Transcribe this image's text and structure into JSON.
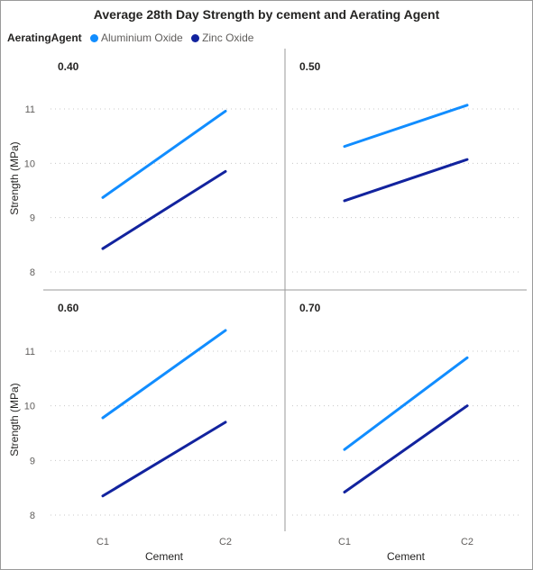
{
  "chart_data": {
    "type": "line",
    "title": "Average 28th Day Strength by cement and Aerating Agent",
    "legend": {
      "title": "AeratingAgent",
      "placement": "top-left",
      "entries": [
        {
          "name": "Aluminium Oxide",
          "color": "#118dff"
        },
        {
          "name": "Zinc Oxide",
          "color": "#12239e"
        }
      ]
    },
    "xlabel": "Cement",
    "ylabel": "Strength (MPa)",
    "categories": [
      "C1",
      "C2"
    ],
    "y_ticks": [
      "8",
      "9",
      "10",
      "11"
    ],
    "grid": true,
    "panels": [
      {
        "label": "0.40",
        "ylim": [
          7.7,
          11.4
        ],
        "series": [
          {
            "name": "Aluminium Oxide",
            "values": [
              9.37,
              10.96
            ]
          },
          {
            "name": "Zinc Oxide",
            "values": [
              8.43,
              9.85
            ]
          }
        ]
      },
      {
        "label": "0.50",
        "ylim": [
          7.7,
          11.4
        ],
        "series": [
          {
            "name": "Aluminium Oxide",
            "values": [
              10.31,
              11.07
            ]
          },
          {
            "name": "Zinc Oxide",
            "values": [
              9.31,
              10.07
            ]
          }
        ]
      },
      {
        "label": "0.60",
        "ylim": [
          7.7,
          11.6
        ],
        "series": [
          {
            "name": "Aluminium Oxide",
            "values": [
              9.78,
              11.38
            ]
          },
          {
            "name": "Zinc Oxide",
            "values": [
              8.35,
              9.7
            ]
          }
        ]
      },
      {
        "label": "0.70",
        "ylim": [
          7.7,
          11.6
        ],
        "series": [
          {
            "name": "Aluminium Oxide",
            "values": [
              9.2,
              10.88
            ]
          },
          {
            "name": "Zinc Oxide",
            "values": [
              8.42,
              10.0
            ]
          }
        ]
      }
    ]
  }
}
